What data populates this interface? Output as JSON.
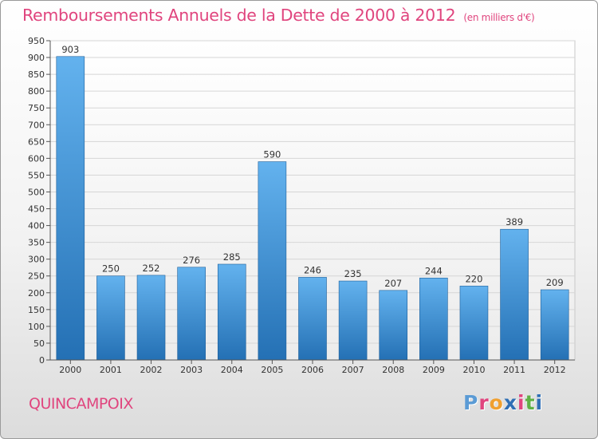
{
  "header": {
    "title": "Remboursements Annuels de la Dette de 2000 à 2012",
    "unit": "(en milliers d'€)"
  },
  "footer": {
    "commune": "QUINCAMPOIX",
    "brand": "Proxiti",
    "brand_colors": [
      "#5b9bd5",
      "#e0457e",
      "#f0a030",
      "#2f6fb5",
      "#e0457e",
      "#5fb045",
      "#2f6fb5"
    ]
  },
  "chart_data": {
    "type": "bar",
    "title": "Remboursements Annuels de la Dette de 2000 à 2012",
    "xlabel": "",
    "ylabel": "",
    "categories": [
      "2000",
      "2001",
      "2002",
      "2003",
      "2004",
      "2005",
      "2006",
      "2007",
      "2008",
      "2009",
      "2010",
      "2011",
      "2012"
    ],
    "values": [
      903,
      250,
      252,
      276,
      285,
      590,
      246,
      235,
      207,
      244,
      220,
      389,
      209
    ],
    "ylim": [
      0,
      950
    ],
    "yticks": [
      0,
      50,
      100,
      150,
      200,
      250,
      300,
      350,
      400,
      450,
      500,
      550,
      600,
      650,
      700,
      750,
      800,
      850,
      900,
      950
    ],
    "grid": true,
    "bar_color_top": "#63b2ee",
    "bar_color_bottom": "#2470b4",
    "title_color": "#e0457e"
  }
}
